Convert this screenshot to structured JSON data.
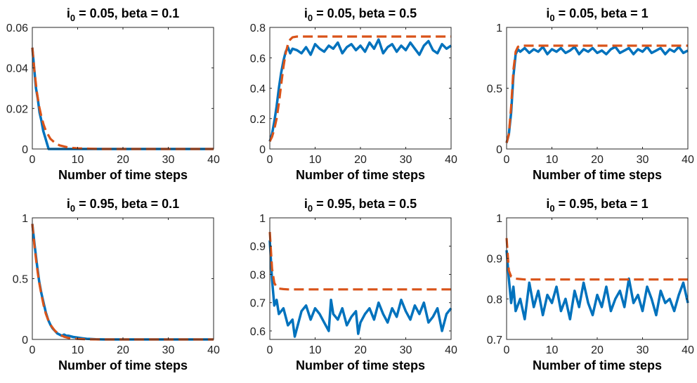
{
  "chart_data": [
    {
      "type": "line",
      "title": "i_0 = 0.05, beta = 0.1",
      "title_parts": {
        "var": "i",
        "sub": "0",
        "rest": " = 0.05, beta = 0.1"
      },
      "xlabel": "Number of time steps",
      "ylabel": "",
      "xlim": [
        0,
        40
      ],
      "ylim": [
        0,
        0.06
      ],
      "xticks": [
        0,
        10,
        20,
        30,
        40
      ],
      "yticks": [
        0,
        0.02,
        0.04,
        0.06
      ],
      "ytick_labels": [
        "0",
        "0.02",
        "0.04",
        "0.06"
      ],
      "series": [
        {
          "style": "solid",
          "color": "#0072BD",
          "x": [
            0,
            0.4,
            0.8,
            1.2,
            1.6,
            2.0,
            2.4,
            2.8,
            3.2,
            3.6,
            40
          ],
          "y": [
            0.05,
            0.04,
            0.03,
            0.025,
            0.018,
            0.014,
            0.009,
            0.006,
            0.003,
            0,
            0
          ]
        },
        {
          "style": "dashed",
          "color": "#D95319",
          "x": [
            0,
            0.5,
            1,
            1.5,
            2,
            2.5,
            3,
            4,
            5,
            6,
            8,
            10,
            15,
            40
          ],
          "y": [
            0.05,
            0.038,
            0.028,
            0.021,
            0.016,
            0.012,
            0.009,
            0.005,
            0.003,
            0.0018,
            0.0007,
            0.0003,
            0,
            0
          ]
        }
      ]
    },
    {
      "type": "line",
      "title": "i_0 = 0.05, beta = 0.5",
      "title_parts": {
        "var": "i",
        "sub": "0",
        "rest": " = 0.05, beta = 0.5"
      },
      "xlabel": "Number of time steps",
      "ylabel": "",
      "xlim": [
        0,
        40
      ],
      "ylim": [
        0,
        0.8
      ],
      "xticks": [
        0,
        10,
        20,
        30,
        40
      ],
      "yticks": [
        0,
        0.2,
        0.4,
        0.6,
        0.8
      ],
      "ytick_labels": [
        "0",
        "0.2",
        "0.4",
        "0.6",
        "0.8"
      ],
      "series": [
        {
          "style": "solid",
          "color": "#0072BD",
          "x": [
            0,
            0.5,
            1,
            1.5,
            2,
            2.5,
            3,
            3.5,
            4,
            4.5,
            5,
            6,
            7,
            8,
            9,
            10,
            11,
            12,
            13,
            14,
            15,
            16,
            17,
            18,
            19,
            20,
            21,
            22,
            23,
            24,
            25,
            26,
            27,
            28,
            29,
            30,
            31,
            32,
            33,
            34,
            35,
            36,
            37,
            38,
            39,
            40
          ],
          "y": [
            0.05,
            0.1,
            0.18,
            0.28,
            0.4,
            0.5,
            0.58,
            0.64,
            0.67,
            0.63,
            0.66,
            0.65,
            0.63,
            0.67,
            0.62,
            0.69,
            0.66,
            0.64,
            0.68,
            0.66,
            0.7,
            0.63,
            0.67,
            0.69,
            0.65,
            0.68,
            0.64,
            0.7,
            0.66,
            0.72,
            0.63,
            0.67,
            0.69,
            0.64,
            0.68,
            0.65,
            0.7,
            0.66,
            0.62,
            0.68,
            0.71,
            0.65,
            0.63,
            0.69,
            0.66,
            0.68
          ]
        },
        {
          "style": "dashed",
          "color": "#D95319",
          "x": [
            0,
            0.5,
            1,
            1.5,
            2,
            2.5,
            3,
            3.5,
            4,
            4.5,
            5,
            6,
            8,
            40
          ],
          "y": [
            0.05,
            0.08,
            0.13,
            0.2,
            0.3,
            0.42,
            0.54,
            0.63,
            0.69,
            0.72,
            0.735,
            0.74,
            0.74,
            0.74
          ]
        }
      ]
    },
    {
      "type": "line",
      "title": "i_0 = 0.05, beta = 1",
      "title_parts": {
        "var": "i",
        "sub": "0",
        "rest": " = 0.05, beta = 1"
      },
      "xlabel": "Number of time steps",
      "ylabel": "",
      "xlim": [
        0,
        40
      ],
      "ylim": [
        0,
        1
      ],
      "xticks": [
        0,
        10,
        20,
        30,
        40
      ],
      "yticks": [
        0,
        0.5,
        1
      ],
      "ytick_labels": [
        "0",
        "0.5",
        "1"
      ],
      "series": [
        {
          "style": "solid",
          "color": "#0072BD",
          "x": [
            0,
            0.5,
            1,
            1.5,
            2,
            2.5,
            3,
            4,
            5,
            6,
            7,
            8,
            9,
            10,
            11,
            12,
            13,
            14,
            15,
            16,
            17,
            18,
            19,
            20,
            21,
            22,
            23,
            24,
            25,
            26,
            27,
            28,
            29,
            30,
            31,
            32,
            33,
            34,
            35,
            36,
            37,
            38,
            39,
            40
          ],
          "y": [
            0.05,
            0.12,
            0.3,
            0.6,
            0.78,
            0.82,
            0.8,
            0.83,
            0.79,
            0.82,
            0.8,
            0.84,
            0.78,
            0.82,
            0.8,
            0.83,
            0.79,
            0.81,
            0.84,
            0.78,
            0.82,
            0.8,
            0.83,
            0.79,
            0.81,
            0.78,
            0.82,
            0.84,
            0.79,
            0.81,
            0.83,
            0.78,
            0.82,
            0.8,
            0.84,
            0.79,
            0.81,
            0.83,
            0.78,
            0.82,
            0.8,
            0.84,
            0.79,
            0.81
          ]
        },
        {
          "style": "dashed",
          "color": "#D95319",
          "x": [
            0,
            0.5,
            1,
            1.5,
            2,
            2.5,
            3,
            4,
            40
          ],
          "y": [
            0.05,
            0.12,
            0.35,
            0.65,
            0.8,
            0.84,
            0.85,
            0.85,
            0.85
          ]
        }
      ]
    },
    {
      "type": "line",
      "title": "i_0 = 0.95, beta = 0.1",
      "title_parts": {
        "var": "i",
        "sub": "0",
        "rest": " = 0.95, beta = 0.1"
      },
      "xlabel": "Number of time steps",
      "ylabel": "",
      "xlim": [
        0,
        40
      ],
      "ylim": [
        0,
        1
      ],
      "xticks": [
        0,
        10,
        20,
        30,
        40
      ],
      "yticks": [
        0,
        0.5,
        1
      ],
      "ytick_labels": [
        "0",
        "0.5",
        "1"
      ],
      "series": [
        {
          "style": "solid",
          "color": "#0072BD",
          "x": [
            0,
            0.5,
            1,
            1.5,
            2,
            2.5,
            3,
            3.5,
            4,
            4.5,
            5,
            5.5,
            6,
            6.5,
            7,
            7.5,
            8,
            9,
            10,
            11,
            12,
            14,
            16,
            40
          ],
          "y": [
            0.95,
            0.78,
            0.62,
            0.48,
            0.38,
            0.3,
            0.22,
            0.16,
            0.12,
            0.09,
            0.07,
            0.05,
            0.04,
            0.03,
            0.04,
            0.03,
            0.03,
            0.02,
            0.015,
            0.01,
            0.005,
            0.002,
            0,
            0
          ]
        },
        {
          "style": "dashed",
          "color": "#D95319",
          "x": [
            0,
            0.5,
            1,
            1.5,
            2,
            2.5,
            3,
            3.5,
            4,
            5,
            6,
            7,
            8,
            10,
            12,
            15,
            40
          ],
          "y": [
            0.95,
            0.76,
            0.6,
            0.47,
            0.37,
            0.28,
            0.21,
            0.16,
            0.12,
            0.07,
            0.04,
            0.022,
            0.012,
            0.004,
            0.001,
            0,
            0
          ]
        }
      ]
    },
    {
      "type": "line",
      "title": "i_0 = 0.95, beta = 0.5",
      "title_parts": {
        "var": "i",
        "sub": "0",
        "rest": " = 0.95, beta = 0.5"
      },
      "xlabel": "Number of time steps",
      "ylabel": "",
      "xlim": [
        0,
        40
      ],
      "ylim": [
        0.57,
        1
      ],
      "xticks": [
        0,
        10,
        20,
        30,
        40
      ],
      "yticks": [
        0.6,
        0.7,
        0.8,
        0.9,
        1
      ],
      "ytick_labels": [
        "0.6",
        "0.7",
        "0.8",
        "0.9",
        "1"
      ],
      "series": [
        {
          "style": "solid",
          "color": "#0072BD",
          "x": [
            0,
            0.5,
            1,
            1.5,
            2,
            3,
            4,
            5,
            5.5,
            6,
            7,
            8,
            9,
            10,
            11,
            12,
            13,
            13.5,
            14,
            15,
            16,
            17,
            18,
            19,
            19.5,
            20,
            21,
            22,
            23,
            24,
            25,
            26,
            27,
            28,
            29,
            30,
            31,
            32,
            33,
            34,
            35,
            36,
            37,
            38,
            39,
            40
          ],
          "y": [
            0.92,
            0.78,
            0.69,
            0.71,
            0.66,
            0.68,
            0.62,
            0.64,
            0.58,
            0.61,
            0.67,
            0.69,
            0.64,
            0.68,
            0.66,
            0.63,
            0.6,
            0.71,
            0.66,
            0.64,
            0.68,
            0.62,
            0.65,
            0.67,
            0.59,
            0.63,
            0.66,
            0.68,
            0.64,
            0.7,
            0.66,
            0.63,
            0.68,
            0.65,
            0.71,
            0.67,
            0.64,
            0.69,
            0.66,
            0.7,
            0.63,
            0.65,
            0.68,
            0.6,
            0.66,
            0.68
          ]
        },
        {
          "style": "dashed",
          "color": "#D95319",
          "x": [
            0,
            0.5,
            1,
            1.5,
            2,
            3,
            4,
            40
          ],
          "y": [
            0.95,
            0.82,
            0.77,
            0.755,
            0.75,
            0.748,
            0.747,
            0.747
          ]
        }
      ]
    },
    {
      "type": "line",
      "title": "i_0 = 0.95, beta = 1",
      "title_parts": {
        "var": "i",
        "sub": "0",
        "rest": " = 0.95, beta = 1"
      },
      "xlabel": "Number of time steps",
      "ylabel": "",
      "xlim": [
        0,
        40
      ],
      "ylim": [
        0.7,
        1
      ],
      "xticks": [
        0,
        10,
        20,
        30,
        40
      ],
      "yticks": [
        0.7,
        0.8,
        0.9,
        1
      ],
      "ytick_labels": [
        "0.7",
        "0.8",
        "0.9",
        "1"
      ],
      "series": [
        {
          "style": "solid",
          "color": "#0072BD",
          "x": [
            0,
            0.5,
            1,
            1.5,
            2,
            3,
            4,
            5,
            6,
            7,
            8,
            9,
            10,
            11,
            12,
            13,
            14,
            15,
            16,
            17,
            18,
            19,
            20,
            21,
            22,
            23,
            24,
            25,
            26,
            27,
            28,
            29,
            30,
            31,
            32,
            33,
            34,
            35,
            36,
            37,
            38,
            39,
            40
          ],
          "y": [
            0.92,
            0.85,
            0.79,
            0.83,
            0.77,
            0.8,
            0.75,
            0.84,
            0.78,
            0.82,
            0.76,
            0.81,
            0.79,
            0.83,
            0.77,
            0.8,
            0.75,
            0.82,
            0.78,
            0.84,
            0.79,
            0.76,
            0.81,
            0.78,
            0.83,
            0.77,
            0.8,
            0.82,
            0.78,
            0.85,
            0.79,
            0.81,
            0.77,
            0.83,
            0.8,
            0.76,
            0.82,
            0.79,
            0.8,
            0.77,
            0.81,
            0.84,
            0.79
          ]
        },
        {
          "style": "dashed",
          "color": "#D95319",
          "x": [
            0,
            0.5,
            1,
            2,
            3,
            4,
            40
          ],
          "y": [
            0.95,
            0.87,
            0.855,
            0.85,
            0.849,
            0.848,
            0.848
          ]
        }
      ]
    }
  ]
}
